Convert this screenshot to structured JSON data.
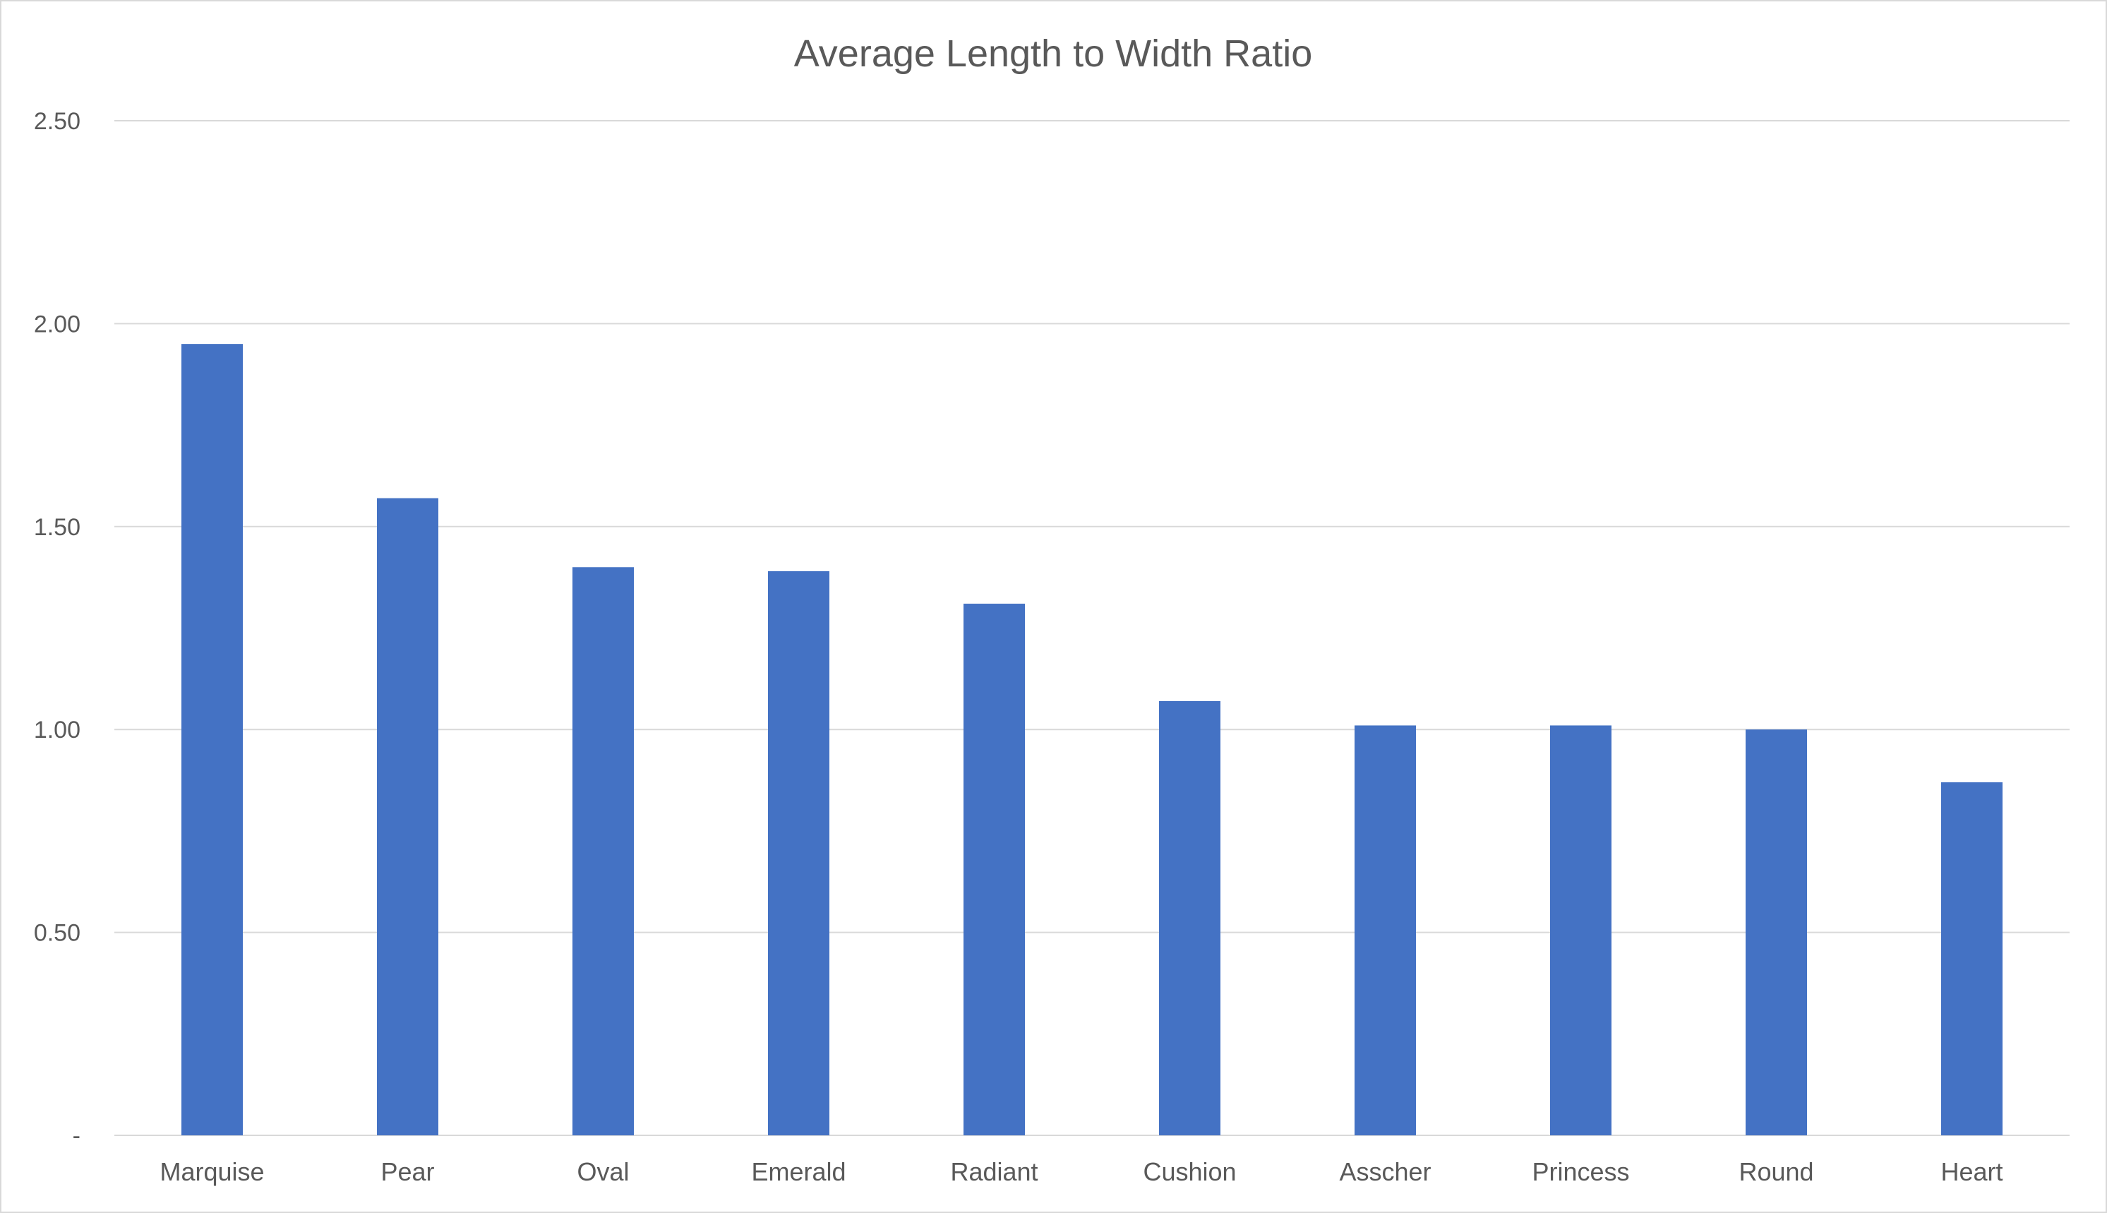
{
  "chart_data": {
    "type": "bar",
    "title": "Average Length to Width Ratio",
    "xlabel": "",
    "ylabel": "",
    "categories": [
      "Marquise",
      "Pear",
      "Oval",
      "Emerald",
      "Radiant",
      "Cushion",
      "Asscher",
      "Princess",
      "Round",
      "Heart"
    ],
    "series": [
      {
        "values": [
          1.95,
          1.57,
          1.4,
          1.39,
          1.31,
          1.07,
          1.01,
          1.01,
          1.0,
          0.87
        ],
        "color": "#4472c4"
      }
    ],
    "ylim": [
      0,
      2.5
    ],
    "yticks": [
      {
        "value": 0,
        "label": "-"
      },
      {
        "value": 0.5,
        "label": "0.50"
      },
      {
        "value": 1.0,
        "label": "1.00"
      },
      {
        "value": 1.5,
        "label": "1.50"
      },
      {
        "value": 2.0,
        "label": "2.00"
      },
      {
        "value": 2.5,
        "label": "2.50"
      }
    ],
    "grid": true,
    "gridline_color": "#d9d9d9",
    "legend": "none"
  }
}
